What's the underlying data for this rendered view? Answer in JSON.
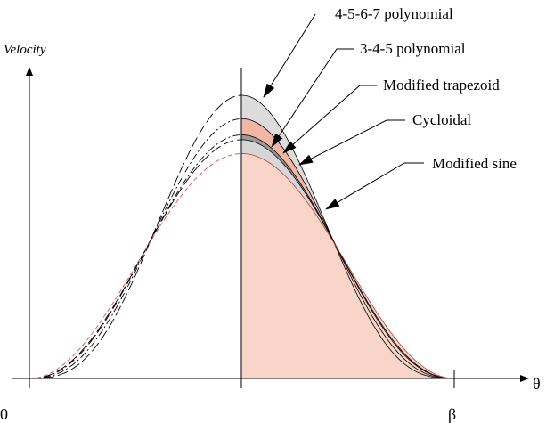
{
  "diagram": {
    "y_axis_label": "Velocity",
    "x_axis_label": "θ",
    "origin_label": "0",
    "end_label": "β",
    "curves": [
      {
        "name": "4-5-6-7 polynomial",
        "peak_factor": 1.0,
        "style": "long-dash",
        "fill": "#dcdcdc"
      },
      {
        "name": "3-4-5 polynomial",
        "peak_factor": 0.917,
        "style": "dash-dot",
        "fill": "#f3b6a4"
      },
      {
        "name": "Modified trapezoid",
        "peak_factor": 0.86,
        "style": "dash-dot",
        "fill": "#9a9a9a"
      },
      {
        "name": "Cycloidal",
        "peak_factor": 0.843,
        "style": "long-dash",
        "fill": "#d6d6d6"
      },
      {
        "name": "Modified sine",
        "peak_factor": 0.794,
        "style": "red-dash",
        "fill": "#f8d5c8"
      }
    ]
  }
}
